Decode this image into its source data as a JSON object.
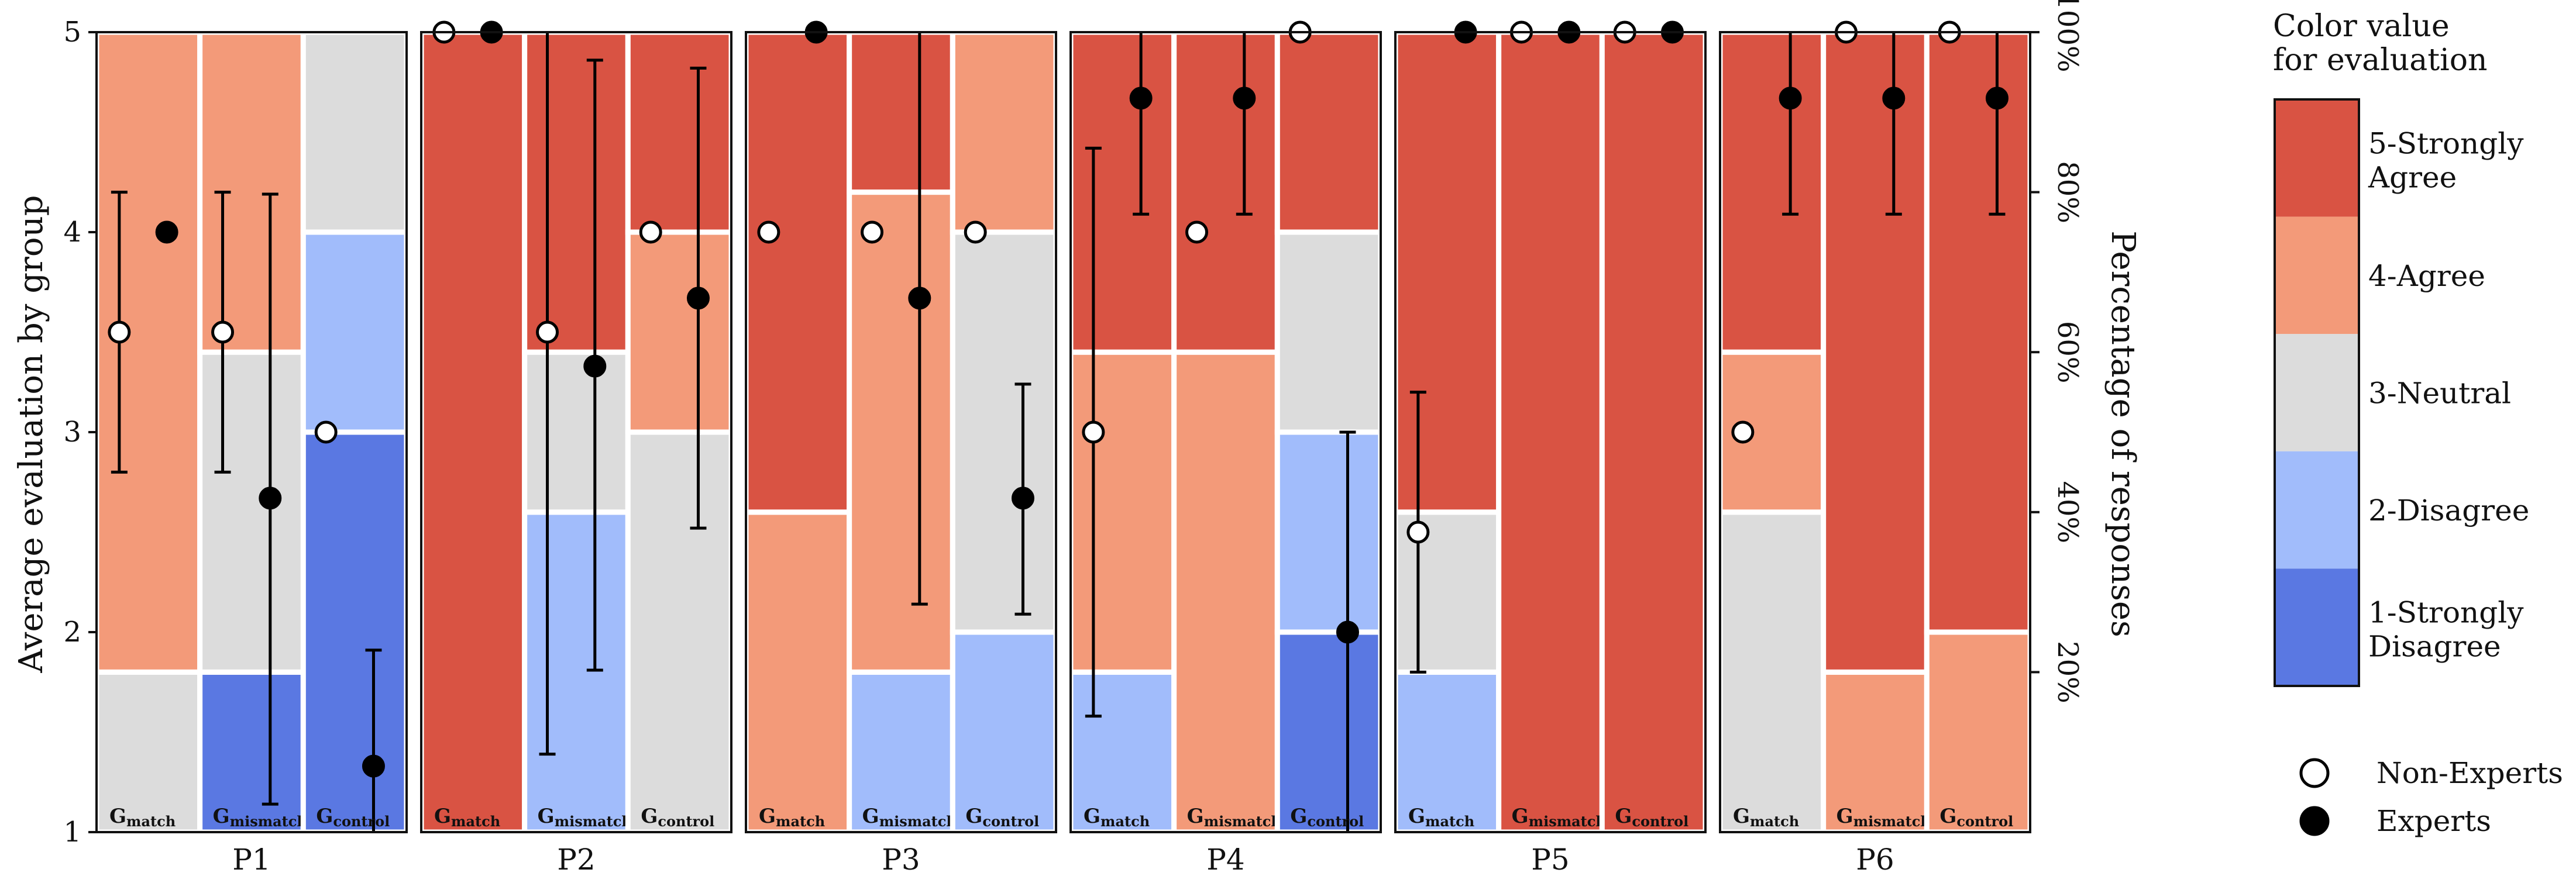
{
  "chart_data": {
    "type": "stacked-bar-with-errorbars",
    "left_axis": {
      "title": "Average evaluation by group",
      "range": [
        1,
        5
      ],
      "ticks": [
        1,
        2,
        3,
        4,
        5
      ],
      "tick_labels": [
        "1",
        "2",
        "3",
        "4",
        "5"
      ]
    },
    "right_axis": {
      "title": "Percentage of responses",
      "range": [
        0,
        100
      ],
      "ticks": [
        20,
        40,
        60,
        80,
        100
      ],
      "tick_labels": [
        "20%",
        "40%",
        "60%",
        "80%",
        "100%"
      ]
    },
    "colors": {
      "c1": "#5a78e2",
      "c2": "#a1bcfb",
      "c3": "#dcdcdc",
      "c4": "#f39a79",
      "c5": "#d95343"
    },
    "legend": {
      "title_line1": "Color value",
      "title_line2": "for evaluation",
      "items": [
        {
          "key": "c5",
          "line1": "5-Strongly",
          "line2": "Agree"
        },
        {
          "key": "c4",
          "line1": "4-Agree",
          "line2": ""
        },
        {
          "key": "c3",
          "line1": "3-Neutral",
          "line2": ""
        },
        {
          "key": "c2",
          "line1": "2-Disagree",
          "line2": ""
        },
        {
          "key": "c1",
          "line1": "1-Strongly",
          "line2": "Disagree"
        }
      ],
      "markers": [
        {
          "type": "open",
          "label": "Non-Experts"
        },
        {
          "type": "filled",
          "label": "Experts"
        }
      ]
    },
    "group_labels": [
      {
        "base": "G",
        "sub": "match"
      },
      {
        "base": "G",
        "sub": "mismatch"
      },
      {
        "base": "G",
        "sub": "control"
      }
    ],
    "panels": [
      {
        "label": "P1",
        "groups": [
          {
            "pct": [
              0,
              0,
              20,
              80,
              0
            ],
            "nonexpert": {
              "mean": 3.5,
              "lo": 2.8,
              "hi": 4.2
            },
            "expert": {
              "mean": 4.0
            }
          },
          {
            "pct": [
              20,
              0,
              40,
              40,
              0
            ],
            "nonexpert": {
              "mean": 3.5,
              "lo": 2.8,
              "hi": 4.2
            },
            "expert": {
              "mean": 2.67,
              "lo": 1.14,
              "hi": 4.19
            }
          },
          {
            "pct": [
              50,
              25,
              25,
              0,
              0
            ],
            "nonexpert": {
              "mean": 3.0
            },
            "expert": {
              "mean": 1.33,
              "lo": 0.76,
              "hi": 1.91
            }
          }
        ]
      },
      {
        "label": "P2",
        "groups": [
          {
            "pct": [
              0,
              0,
              0,
              0,
              100
            ],
            "nonexpert": {
              "mean": 5.0
            },
            "expert": {
              "mean": 5.0
            }
          },
          {
            "pct": [
              0,
              40,
              20,
              0,
              40
            ],
            "nonexpert": {
              "mean": 3.5,
              "lo": 1.39,
              "hi": 5.61
            },
            "expert": {
              "mean": 3.33,
              "lo": 1.81,
              "hi": 4.86
            }
          },
          {
            "pct": [
              0,
              0,
              50,
              25,
              25
            ],
            "nonexpert": {
              "mean": 4.0
            },
            "expert": {
              "mean": 3.67,
              "lo": 2.52,
              "hi": 4.82
            }
          }
        ]
      },
      {
        "label": "P3",
        "groups": [
          {
            "pct": [
              0,
              0,
              0,
              40,
              60
            ],
            "nonexpert": {
              "mean": 4.0
            },
            "expert": {
              "mean": 5.0
            }
          },
          {
            "pct": [
              0,
              20,
              0,
              60,
              20
            ],
            "nonexpert": {
              "mean": 4.0
            },
            "expert": {
              "mean": 3.67,
              "lo": 2.14,
              "hi": 5.19
            }
          },
          {
            "pct": [
              0,
              25,
              50,
              25,
              0
            ],
            "nonexpert": {
              "mean": 4.0
            },
            "expert": {
              "mean": 2.67,
              "lo": 2.09,
              "hi": 3.24
            }
          }
        ]
      },
      {
        "label": "P4",
        "groups": [
          {
            "pct": [
              0,
              20,
              0,
              40,
              40
            ],
            "nonexpert": {
              "mean": 3.0,
              "lo": 1.58,
              "hi": 4.42
            },
            "expert": {
              "mean": 4.67,
              "lo": 4.09,
              "hi": 5.24
            }
          },
          {
            "pct": [
              0,
              0,
              0,
              60,
              40
            ],
            "nonexpert": {
              "mean": 4.0
            },
            "expert": {
              "mean": 4.67,
              "lo": 4.09,
              "hi": 5.24
            }
          },
          {
            "pct": [
              25,
              25,
              25,
              0,
              25
            ],
            "nonexpert": {
              "mean": 5.0
            },
            "expert": {
              "mean": 2.0,
              "lo": 0.5,
              "hi": 3.0
            }
          }
        ]
      },
      {
        "label": "P5",
        "groups": [
          {
            "pct": [
              0,
              20,
              20,
              0,
              60
            ],
            "nonexpert": {
              "mean": 2.5,
              "lo": 1.8,
              "hi": 3.2
            },
            "expert": {
              "mean": 5.0
            }
          },
          {
            "pct": [
              0,
              0,
              0,
              0,
              100
            ],
            "nonexpert": {
              "mean": 5.0
            },
            "expert": {
              "mean": 5.0
            }
          },
          {
            "pct": [
              0,
              0,
              0,
              0,
              100
            ],
            "nonexpert": {
              "mean": 5.0
            },
            "expert": {
              "mean": 5.0
            }
          }
        ]
      },
      {
        "label": "P6",
        "groups": [
          {
            "pct": [
              0,
              0,
              40,
              20,
              40
            ],
            "nonexpert": {
              "mean": 3.0
            },
            "expert": {
              "mean": 4.67,
              "lo": 4.09,
              "hi": 5.24
            }
          },
          {
            "pct": [
              0,
              0,
              0,
              20,
              80
            ],
            "nonexpert": {
              "mean": 5.0
            },
            "expert": {
              "mean": 4.67,
              "lo": 4.09,
              "hi": 5.24
            }
          },
          {
            "pct": [
              0,
              0,
              0,
              25,
              75
            ],
            "nonexpert": {
              "mean": 5.0
            },
            "expert": {
              "mean": 4.67,
              "lo": 4.09,
              "hi": 5.24
            }
          }
        ]
      }
    ]
  }
}
